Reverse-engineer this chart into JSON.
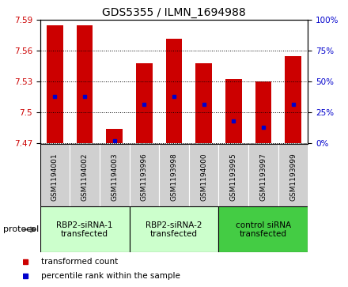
{
  "title": "GDS5355 / ILMN_1694988",
  "samples": [
    "GSM1194001",
    "GSM1194002",
    "GSM1194003",
    "GSM1193996",
    "GSM1193998",
    "GSM1194000",
    "GSM1193995",
    "GSM1193997",
    "GSM1193999"
  ],
  "transformed_counts": [
    7.585,
    7.585,
    7.484,
    7.548,
    7.572,
    7.548,
    7.533,
    7.53,
    7.555
  ],
  "percentile_ranks": [
    7.516,
    7.516,
    7.473,
    7.508,
    7.516,
    7.508,
    7.492,
    7.486,
    7.508
  ],
  "ylim_left": [
    7.47,
    7.59
  ],
  "yticks_left": [
    7.47,
    7.5,
    7.53,
    7.56,
    7.59
  ],
  "yticks_right": [
    0,
    25,
    50,
    75,
    100
  ],
  "bar_color": "#cc0000",
  "dot_color": "#0000cc",
  "bar_width": 0.55,
  "groups": [
    {
      "label": "RBP2-siRNA-1\ntransfected",
      "indices": [
        0,
        1,
        2
      ],
      "color": "#ccffcc"
    },
    {
      "label": "RBP2-siRNA-2\ntransfected",
      "indices": [
        3,
        4,
        5
      ],
      "color": "#ccffcc"
    },
    {
      "label": "control siRNA\ntransfected",
      "indices": [
        6,
        7,
        8
      ],
      "color": "#44cc44"
    }
  ],
  "legend_items": [
    {
      "label": "transformed count",
      "color": "#cc0000"
    },
    {
      "label": "percentile rank within the sample",
      "color": "#0000cc"
    }
  ],
  "protocol_label": "protocol",
  "tick_label_color_left": "#cc0000",
  "tick_label_color_right": "#0000cc",
  "sample_box_color": "#d0d0d0",
  "grid_color": "#000000"
}
